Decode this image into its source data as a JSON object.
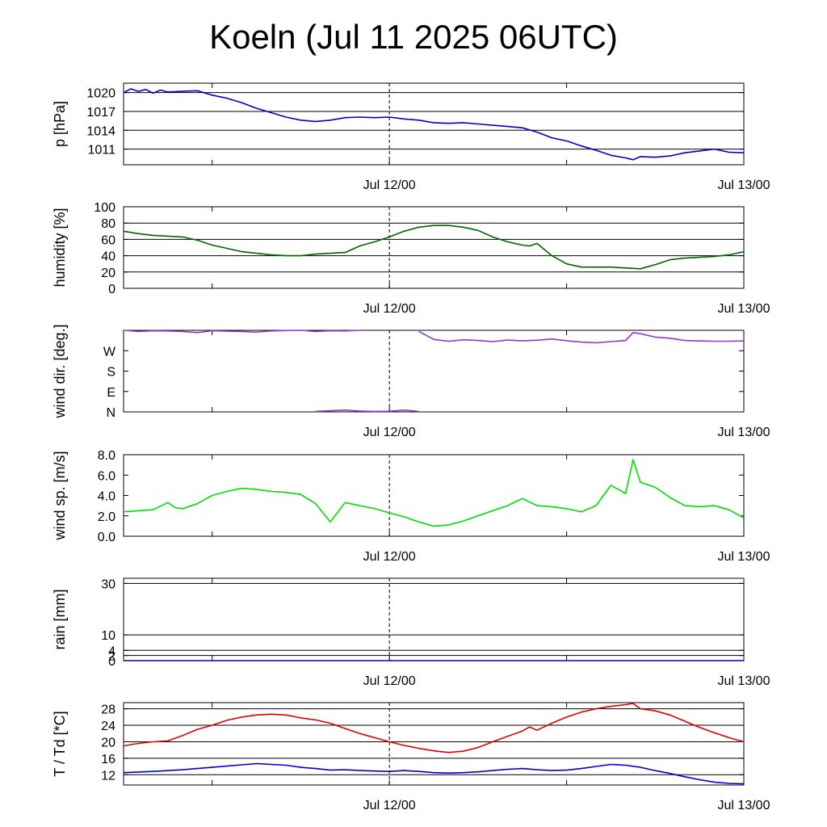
{
  "title": "Koeln (Jul 11 2025 06UTC)",
  "chart_data": [
    {
      "type": "line",
      "ylabel": "p [hPa]",
      "ylim": [
        1008.5,
        1021.5
      ],
      "yticks": [
        {
          "v": 1011,
          "label": "1011"
        },
        {
          "v": 1014,
          "label": "1014"
        },
        {
          "v": 1017,
          "label": "1017"
        },
        {
          "v": 1020,
          "label": "1020"
        }
      ],
      "hgrid": [
        1011,
        1014,
        1017,
        1020
      ],
      "xlim": [
        0,
        42
      ],
      "xticks": [
        {
          "v": 18,
          "label": "Jul 12/00"
        },
        {
          "v": 42,
          "label": "Jul 13/00"
        }
      ],
      "x_minor": [
        6,
        30
      ],
      "vline": 18,
      "series": [
        {
          "color": "#0000cc",
          "x": [
            0,
            0.5,
            1,
            1.5,
            2,
            2.5,
            3,
            4,
            5,
            6,
            7,
            8,
            9,
            10,
            11,
            12,
            13,
            14,
            15,
            16,
            17,
            18,
            19,
            20,
            21,
            22,
            23,
            24,
            25,
            26,
            27,
            28,
            29,
            30,
            31,
            32,
            33,
            34,
            34.5,
            35,
            36,
            37,
            38,
            39,
            40,
            41,
            42
          ],
          "y": [
            1020,
            1020.6,
            1020.2,
            1020.5,
            1019.9,
            1020.4,
            1020.1,
            1020.2,
            1020.3,
            1019.6,
            1019.1,
            1018.4,
            1017.5,
            1016.8,
            1016.1,
            1015.6,
            1015.4,
            1015.6,
            1016.0,
            1016.1,
            1016.0,
            1016.1,
            1015.8,
            1015.6,
            1015.2,
            1015.1,
            1015.2,
            1015.0,
            1014.8,
            1014.6,
            1014.4,
            1013.7,
            1012.8,
            1012.3,
            1011.5,
            1010.8,
            1010.0,
            1009.6,
            1009.3,
            1009.8,
            1009.7,
            1009.9,
            1010.4,
            1010.7,
            1011.0,
            1010.5,
            1010.4
          ]
        }
      ]
    },
    {
      "type": "line",
      "ylabel": "humidity [%]",
      "ylim": [
        0,
        100
      ],
      "yticks": [
        {
          "v": 0,
          "label": "0"
        },
        {
          "v": 20,
          "label": "20"
        },
        {
          "v": 40,
          "label": "40"
        },
        {
          "v": 60,
          "label": "60"
        },
        {
          "v": 80,
          "label": "80"
        },
        {
          "v": 100,
          "label": "100"
        }
      ],
      "hgrid": [
        20,
        40,
        60,
        80
      ],
      "xlim": [
        0,
        42
      ],
      "xticks": [
        {
          "v": 18,
          "label": "Jul 12/00"
        },
        {
          "v": 42,
          "label": "Jul 13/00"
        }
      ],
      "x_minor": [
        6,
        30
      ],
      "vline": 18,
      "series": [
        {
          "color": "#006600",
          "x": [
            0,
            1,
            2,
            3,
            4,
            5,
            6,
            7,
            8,
            9,
            10,
            11,
            12,
            13,
            14,
            15,
            16,
            17,
            18,
            19,
            20,
            21,
            22,
            23,
            24,
            25,
            26,
            27,
            27.5,
            28,
            29,
            30,
            31,
            32,
            33,
            34,
            35,
            36,
            37,
            38,
            39,
            40,
            41,
            42
          ],
          "y": [
            70,
            67,
            65,
            64,
            63,
            59,
            53,
            49,
            45,
            43,
            41,
            40,
            40,
            42,
            43,
            44,
            52,
            57,
            63,
            70,
            75,
            77,
            77,
            75,
            71,
            63,
            57,
            53,
            52,
            55,
            40,
            30,
            26,
            26,
            26,
            25,
            24,
            29,
            35,
            37,
            38,
            39,
            41,
            45
          ]
        }
      ]
    },
    {
      "type": "scatter",
      "ylabel": "wind dir. [deg.]",
      "ylim": [
        0,
        360
      ],
      "yticks": [
        {
          "v": 0,
          "label": "N"
        },
        {
          "v": 90,
          "label": "E"
        },
        {
          "v": 180,
          "label": "S"
        },
        {
          "v": 270,
          "label": "W"
        }
      ],
      "hgrid": [],
      "xlim": [
        0,
        42
      ],
      "xticks": [
        {
          "v": 18,
          "label": "Jul 12/00"
        },
        {
          "v": 42,
          "label": "Jul 13/00"
        }
      ],
      "x_minor": [
        6,
        30
      ],
      "vline": 18,
      "series": [
        {
          "color": "#9933cc",
          "x": [
            0,
            1,
            2,
            3,
            4,
            5,
            6,
            7,
            8,
            9,
            10,
            11,
            12,
            13,
            14,
            15,
            16
          ],
          "y": [
            360,
            355,
            358,
            357,
            355,
            350,
            358,
            356,
            355,
            352,
            357,
            359,
            360,
            355,
            358,
            357,
            360
          ]
        },
        {
          "color": "#9933cc",
          "x": [
            13,
            14,
            15,
            16,
            17,
            18,
            19,
            20
          ],
          "y": [
            2,
            5,
            8,
            4,
            2,
            3,
            8,
            2
          ]
        },
        {
          "color": "#9933cc",
          "x": [
            20,
            21,
            22,
            23,
            24,
            25,
            26,
            27,
            28,
            29,
            30,
            31,
            32,
            33,
            34,
            34.5,
            35,
            36,
            37,
            38,
            39,
            40,
            41,
            42
          ],
          "y": [
            355,
            320,
            312,
            318,
            315,
            310,
            317,
            314,
            316,
            322,
            314,
            308,
            305,
            310,
            315,
            350,
            345,
            330,
            325,
            315,
            313,
            312,
            312,
            313
          ]
        }
      ]
    },
    {
      "type": "line",
      "ylabel": "wind sp. [m/s]",
      "ylim": [
        0,
        8
      ],
      "yticks": [
        {
          "v": 0,
          "label": "0.0"
        },
        {
          "v": 2,
          "label": "2.0"
        },
        {
          "v": 4,
          "label": "4.0"
        },
        {
          "v": 6,
          "label": "6.0"
        },
        {
          "v": 8,
          "label": "8.0"
        }
      ],
      "hgrid": [],
      "xlim": [
        0,
        42
      ],
      "xticks": [
        {
          "v": 18,
          "label": "Jul 12/00"
        },
        {
          "v": 42,
          "label": "Jul 13/00"
        }
      ],
      "x_minor": [
        6,
        30
      ],
      "vline": 18,
      "series": [
        {
          "color": "#00dd00",
          "x": [
            0,
            1,
            2,
            3,
            3.5,
            4,
            5,
            6,
            7,
            8,
            9,
            10,
            11,
            12,
            13,
            14,
            15,
            16,
            17,
            18,
            19,
            20,
            21,
            22,
            23,
            24,
            25,
            26,
            27,
            28,
            29,
            30,
            31,
            32,
            33,
            34,
            34.5,
            35,
            36,
            37,
            38,
            39,
            40,
            41,
            42
          ],
          "y": [
            2.4,
            2.5,
            2.6,
            3.3,
            2.8,
            2.7,
            3.2,
            4.0,
            4.4,
            4.7,
            4.6,
            4.4,
            4.3,
            4.1,
            3.2,
            1.4,
            3.3,
            3.0,
            2.7,
            2.3,
            1.9,
            1.4,
            1.0,
            1.1,
            1.5,
            2.0,
            2.5,
            3.0,
            3.7,
            3.0,
            2.9,
            2.7,
            2.4,
            3.0,
            5.0,
            4.2,
            7.5,
            5.3,
            4.8,
            3.8,
            3.0,
            2.9,
            3.0,
            2.6,
            1.8
          ]
        }
      ]
    },
    {
      "type": "line",
      "ylabel": "rain [mm]",
      "ylim": [
        0,
        32
      ],
      "yticks": [
        {
          "v": 0,
          "label": "0"
        },
        {
          "v": 2,
          "label": "2"
        },
        {
          "v": 4,
          "label": "4"
        },
        {
          "v": 10,
          "label": "10"
        },
        {
          "v": 30,
          "label": "30"
        }
      ],
      "hgrid": [
        2,
        4,
        10,
        30
      ],
      "xlim": [
        0,
        42
      ],
      "xticks": [
        {
          "v": 18,
          "label": "Jul 12/00"
        },
        {
          "v": 42,
          "label": "Jul 13/00"
        }
      ],
      "x_minor": [
        6,
        30
      ],
      "vline": 18,
      "series": [
        {
          "color": "#0000cc",
          "x": [
            0,
            42
          ],
          "y": [
            0,
            0
          ]
        }
      ]
    },
    {
      "type": "line",
      "ylabel": "T / Td [*C]",
      "ylim": [
        9.5,
        29.5
      ],
      "yticks": [
        {
          "v": 12,
          "label": "12"
        },
        {
          "v": 16,
          "label": "16"
        },
        {
          "v": 20,
          "label": "20"
        },
        {
          "v": 24,
          "label": "24"
        },
        {
          "v": 28,
          "label": "28"
        }
      ],
      "hgrid": [
        12,
        16,
        20,
        24,
        28
      ],
      "xlim": [
        0,
        42
      ],
      "xticks": [
        {
          "v": 18,
          "label": "Jul 12/00"
        },
        {
          "v": 42,
          "label": "Jul 13/00"
        }
      ],
      "x_minor": [
        6,
        30
      ],
      "vline": 18,
      "series": [
        {
          "color": "#dd0000",
          "x": [
            0,
            1,
            2,
            3,
            4,
            5,
            6,
            7,
            8,
            9,
            10,
            11,
            12,
            13,
            14,
            15,
            16,
            17,
            18,
            19,
            20,
            21,
            22,
            23,
            24,
            25,
            26,
            27,
            27.5,
            28,
            29,
            30,
            31,
            32,
            33,
            34,
            34.5,
            35,
            36,
            37,
            38,
            39,
            40,
            41,
            42
          ],
          "y": [
            19,
            19.6,
            20.0,
            20.2,
            21.5,
            23.0,
            24.0,
            25.2,
            26.0,
            26.5,
            26.7,
            26.5,
            25.8,
            25.3,
            24.5,
            23.2,
            22.0,
            21.0,
            20.0,
            19.1,
            18.4,
            17.8,
            17.4,
            17.7,
            18.6,
            20.0,
            21.3,
            22.6,
            23.6,
            22.8,
            24.5,
            26.0,
            27.2,
            28.0,
            28.6,
            29.0,
            29.3,
            28.0,
            27.5,
            26.5,
            25.0,
            23.5,
            22.2,
            21.0,
            20.0
          ]
        },
        {
          "color": "#0000cc",
          "x": [
            0,
            2,
            4,
            6,
            8,
            9,
            10,
            11,
            12,
            13,
            14,
            15,
            16,
            17,
            18,
            19,
            20,
            21,
            22,
            23,
            24,
            25,
            26,
            27,
            28,
            29,
            30,
            31,
            32,
            33,
            34,
            35,
            36,
            37,
            38,
            39,
            40,
            41,
            42
          ],
          "y": [
            12.5,
            12.8,
            13.2,
            13.8,
            14.4,
            14.7,
            14.5,
            14.3,
            13.8,
            13.5,
            13.1,
            13.2,
            13.0,
            12.9,
            12.8,
            13.0,
            12.8,
            12.5,
            12.4,
            12.5,
            12.7,
            13.0,
            13.3,
            13.5,
            13.2,
            13.0,
            13.1,
            13.5,
            14.0,
            14.5,
            14.3,
            13.8,
            13.0,
            12.3,
            11.5,
            10.8,
            10.2,
            9.9,
            9.8
          ]
        }
      ]
    }
  ]
}
